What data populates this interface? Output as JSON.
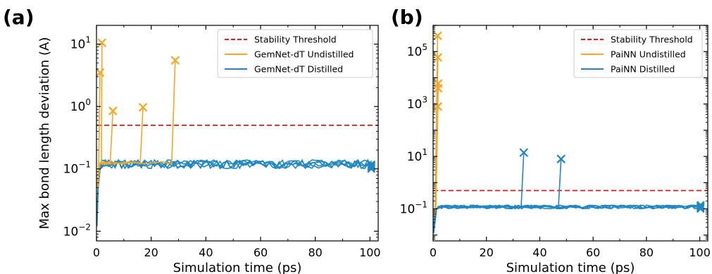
{
  "chart_data": [
    {
      "panel_label": "(a)",
      "type": "line",
      "xlabel": "Simulation time (ps)",
      "ylabel": "Max bond length deviation (A)",
      "xlim": [
        0,
        103
      ],
      "ylim": [
        0.007,
        20
      ],
      "yscale": "log",
      "x_ticks": [
        0,
        20,
        40,
        60,
        80,
        100
      ],
      "x_tick_labels": [
        "0",
        "20",
        "40",
        "60",
        "80",
        "100"
      ],
      "y_ticks": [
        0.01,
        0.1,
        1,
        10
      ],
      "y_tick_labels": [
        {
          "base": "10",
          "exp": "−2"
        },
        {
          "base": "10",
          "exp": "−1"
        },
        {
          "base": "10",
          "exp": "0"
        },
        {
          "base": "10",
          "exp": "1"
        }
      ],
      "legend_position": "top-right",
      "legend": [
        {
          "label": "Stability Threshold",
          "color": "#e31a1c",
          "style": "dashed"
        },
        {
          "label": "GemNet-dT Undistilled",
          "color": "#f5a623",
          "style": "solid"
        },
        {
          "label": "GemNet-dT Distilled",
          "color": "#1f87c4",
          "style": "solid"
        }
      ],
      "threshold": 0.5,
      "undistilled_runs": [
        {
          "x": [
            0.3,
            0.8,
            1.3
          ],
          "y": [
            0.05,
            0.11,
            3.5
          ]
        },
        {
          "x": [
            0.3,
            1.0,
            1.8,
            2.0
          ],
          "y": [
            0.05,
            0.12,
            0.13,
            10.5
          ]
        },
        {
          "x": [
            0.4,
            1.0,
            3,
            5.0,
            6.0
          ],
          "y": [
            0.05,
            0.12,
            0.13,
            0.12,
            0.85
          ]
        },
        {
          "x": [
            0.4,
            1.2,
            5,
            10,
            14,
            16.0,
            17.0
          ],
          "y": [
            0.05,
            0.12,
            0.13,
            0.12,
            0.13,
            0.12,
            0.97
          ]
        },
        {
          "x": [
            0.4,
            1.2,
            6,
            12,
            18,
            24,
            27.5,
            28.8
          ],
          "y": [
            0.05,
            0.12,
            0.12,
            0.13,
            0.12,
            0.13,
            0.12,
            5.5
          ]
        }
      ],
      "distilled_runs": 5,
      "distilled_plateau": 0.12,
      "distilled_end_x": 100.5,
      "distilled_end_y": [
        0.1,
        0.105,
        0.11,
        0.113,
        0.118
      ]
    },
    {
      "panel_label": "(b)",
      "type": "line",
      "xlabel": "Simulation time (ps)",
      "ylabel": "",
      "xlim": [
        0,
        103
      ],
      "ylim": [
        0.006,
        1000000
      ],
      "yscale": "log",
      "x_ticks": [
        0,
        20,
        40,
        60,
        80,
        100
      ],
      "x_tick_labels": [
        "0",
        "20",
        "40",
        "60",
        "80",
        "100"
      ],
      "y_ticks": [
        0.1,
        10,
        1000,
        100000
      ],
      "y_tick_labels": [
        {
          "base": "10",
          "exp": "−1"
        },
        {
          "base": "10",
          "exp": "1"
        },
        {
          "base": "10",
          "exp": "3"
        },
        {
          "base": "10",
          "exp": "5"
        }
      ],
      "legend_position": "top-right",
      "legend": [
        {
          "label": "Stability Threshold",
          "color": "#e31a1c",
          "style": "dashed"
        },
        {
          "label": "PaiNN Undistilled",
          "color": "#f5a623",
          "style": "solid"
        },
        {
          "label": "PaiNN Distilled",
          "color": "#1f87c4",
          "style": "solid"
        }
      ],
      "threshold": 0.5,
      "undistilled_runs": [
        {
          "x": [
            0.3,
            0.8,
            1.7
          ],
          "y": [
            0.05,
            0.12,
            400000
          ]
        },
        {
          "x": [
            0.3,
            0.9,
            1.8
          ],
          "y": [
            0.05,
            0.12,
            60000
          ]
        },
        {
          "x": [
            0.3,
            1.0,
            1.9
          ],
          "y": [
            0.05,
            0.12,
            6000
          ]
        },
        {
          "x": [
            0.3,
            1.0,
            1.9
          ],
          "y": [
            0.05,
            0.12,
            4000
          ]
        },
        {
          "x": [
            0.3,
            1.0,
            1.8
          ],
          "y": [
            0.05,
            0.12,
            800
          ]
        }
      ],
      "distilled_runs": 5,
      "distilled_plateau": 0.12,
      "distilled_spike_runs": [
        {
          "x_start": 33.0,
          "x_end": 34.0,
          "y_end": 14
        },
        {
          "x_start": 47.0,
          "x_end": 48.0,
          "y_end": 8
        }
      ],
      "distilled_end_x": 100.3,
      "distilled_end_y": [
        0.1,
        0.11,
        0.12,
        0.13,
        0.14
      ]
    }
  ]
}
